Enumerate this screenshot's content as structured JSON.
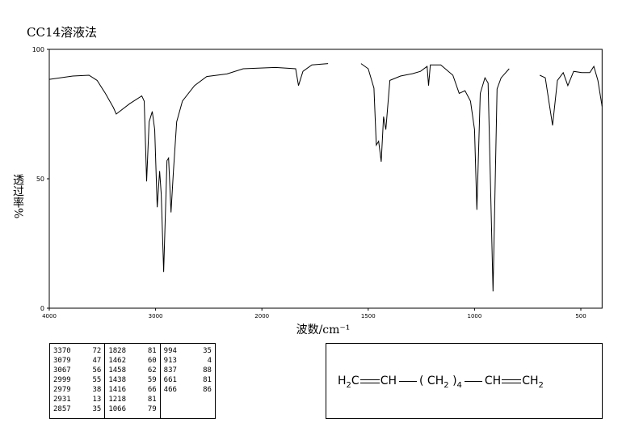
{
  "chart_data": {
    "type": "line",
    "title": "CC14溶液法",
    "x_label": "波数/cm⁻¹",
    "y_label": "透过率%",
    "xlim": [
      4000,
      400
    ],
    "xticks": [
      4000,
      3000,
      2000,
      1500,
      1000,
      500
    ],
    "ylim": [
      0,
      100
    ],
    "yticks": [
      0,
      50,
      100
    ],
    "color": "#000000",
    "x": [
      4000,
      3779,
      3626,
      3550,
      3473,
      3397,
      3370,
      3244,
      3130,
      3107,
      3084,
      3061,
      3031,
      3008,
      2985,
      2962,
      2947,
      2924,
      2893,
      2878,
      2855,
      2832,
      2802,
      2748,
      2634,
      2519,
      2328,
      2176,
      1936,
      1841,
      1828,
      1807,
      1765,
      1689,
      1610,
      1534,
      1500,
      1473,
      1462,
      1451,
      1439,
      1428,
      1417,
      1398,
      1348,
      1292,
      1254,
      1223,
      1216,
      1208,
      1159,
      1102,
      1072,
      1045,
      1019,
      1000,
      989,
      973,
      951,
      936,
      913,
      894,
      875,
      837,
      770,
      693,
      667,
      633,
      610,
      583,
      561,
      534,
      496,
      458,
      439,
      420,
      400
    ],
    "series": [
      {
        "values": [
          88.4,
          89.7,
          90,
          88,
          83,
          77.5,
          75,
          79,
          82,
          80,
          49,
          72,
          76,
          69,
          39,
          53,
          44,
          14,
          57,
          58,
          37,
          53,
          72,
          80,
          86,
          89.5,
          90.5,
          92.5,
          93,
          92.5,
          86,
          91.5,
          94,
          94.5,
          null,
          94.5,
          92.5,
          85,
          63,
          64.5,
          56.6,
          74,
          69,
          88,
          89.7,
          90.6,
          91.5,
          93.4,
          86,
          94,
          94,
          90,
          83,
          84,
          80,
          69,
          38,
          83,
          89,
          87,
          6.5,
          84.7,
          89,
          92.5,
          null,
          90,
          89,
          70.6,
          88,
          91,
          86,
          91.5,
          91,
          91,
          93.4,
          88,
          78
        ]
      }
    ]
  },
  "peak_table": {
    "columns": [
      [
        [
          "3370",
          "72"
        ],
        [
          "3079",
          "47"
        ],
        [
          "3067",
          "56"
        ],
        [
          "2999",
          "55"
        ],
        [
          "2979",
          "38"
        ],
        [
          "2931",
          "13"
        ],
        [
          "2857",
          "35"
        ]
      ],
      [
        [
          "1828",
          "81"
        ],
        [
          "1462",
          "60"
        ],
        [
          "1458",
          "62"
        ],
        [
          "1438",
          "59"
        ],
        [
          "1416",
          "66"
        ],
        [
          "1218",
          "81"
        ],
        [
          "1066",
          "79"
        ]
      ],
      [
        [
          "994",
          "35"
        ],
        [
          "913",
          "4"
        ],
        [
          "837",
          "88"
        ],
        [
          "661",
          "81"
        ],
        [
          "466",
          "86"
        ]
      ]
    ]
  },
  "formula": {
    "left": "H",
    "left_sub": "2",
    "left_c": "C",
    "ch1": "CH",
    "open": "(",
    "ch2": "CH",
    "ch2_sub": "2",
    "close": ")",
    "n": "4",
    "ch3": "CH",
    "ch4": "CH",
    "ch4_sub": "2"
  }
}
